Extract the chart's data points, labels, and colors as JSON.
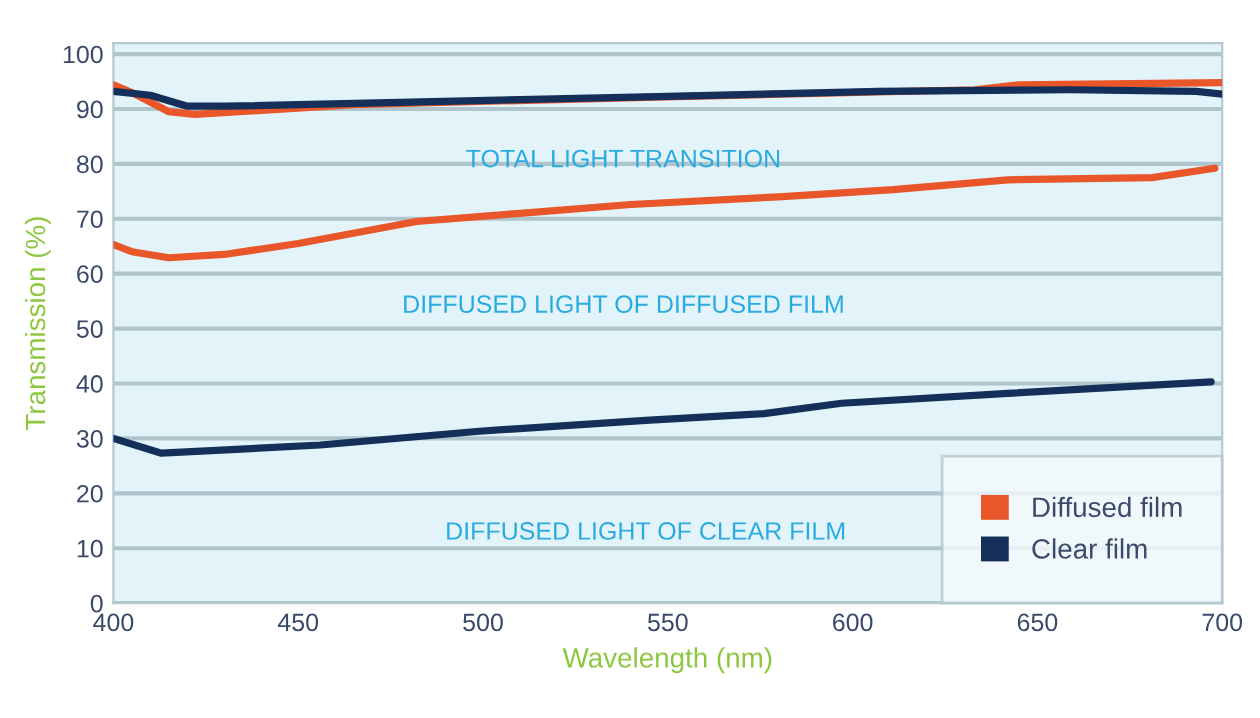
{
  "chart_data": {
    "type": "line",
    "xlabel": "Wavelength (nm)",
    "ylabel": "Transmission (%)",
    "annotations": [
      "TOTAL LIGHT TRANSITION",
      "DIFFUSED LIGHT OF DIFFUSED FILM",
      "DIFFUSED LIGHT OF CLEAR FILM"
    ],
    "series": [
      {
        "name": "Diffused film",
        "color": "#e8562a",
        "x": [
          400,
          405,
          415,
          422,
          465,
          544,
          633,
          645,
          700
        ],
        "values": [
          94.4,
          93,
          89.5,
          89,
          90.8,
          92.1,
          93.5,
          94.4,
          94.8
        ]
      },
      {
        "name": "Clear film",
        "color": "#14305a",
        "x": [
          400,
          410,
          420,
          430,
          544,
          607,
          659,
          693,
          700
        ],
        "values": [
          93.2,
          92.5,
          90.5,
          90.5,
          92.2,
          93.2,
          93.5,
          93.2,
          92.7
        ]
      },
      {
        "color": "#e8562a",
        "x": [
          400,
          405,
          415,
          430,
          450,
          482,
          510,
          540,
          580,
          611,
          642,
          681,
          698
        ],
        "values": [
          65.3,
          64,
          62.9,
          63.5,
          65.5,
          69.5,
          71,
          72.6,
          74,
          75.3,
          77.1,
          77.5,
          79.2
        ]
      },
      {
        "color": "#14305a",
        "x": [
          400,
          413,
          456,
          499,
          544,
          576,
          597,
          642,
          697
        ],
        "values": [
          30,
          27.3,
          28.8,
          31.3,
          33.3,
          34.5,
          36.4,
          38.2,
          40.3
        ]
      }
    ],
    "xlim": [
      400,
      700
    ],
    "xticks": [
      400,
      450,
      500,
      550,
      600,
      650,
      700
    ],
    "ylim": [
      0,
      102
    ],
    "yticks": [
      0,
      10,
      20,
      30,
      40,
      50,
      60,
      70,
      80,
      90,
      100
    ],
    "grid": "y",
    "legend": "bottom right",
    "marker": "none",
    "line_style": "solid"
  }
}
